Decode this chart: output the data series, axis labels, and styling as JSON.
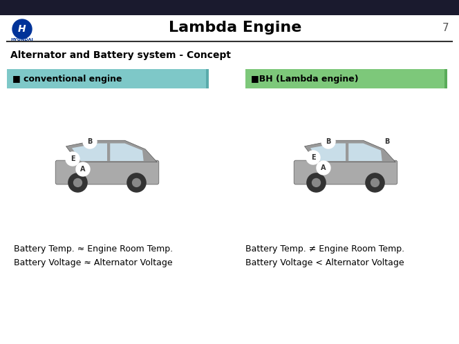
{
  "title": "Lambda Engine",
  "page_number": "7",
  "subtitle": "Alternator and Battery system - Concept",
  "left_label": "■ conventional engine",
  "right_label": "■BH (Lambda engine)",
  "left_box_color": "#7EC8C8",
  "right_box_color": "#7DC87A",
  "left_text_line1": "Battery Temp. ≈ Engine Room Temp.",
  "left_text_line2": "Battery Voltage ≈ Alternator Voltage",
  "right_text_line1": "Battery Temp. ≠ Engine Room Temp.",
  "right_text_line2": "Battery Voltage < Alternator Voltage",
  "header_bg": "#1a1a2e",
  "header_line_color": "#003399",
  "bg_color": "#ffffff",
  "title_color": "#000000",
  "subtitle_color": "#000000",
  "label_text_color": "#000000",
  "body_text_color": "#000000",
  "hyundai_color": "#003399"
}
